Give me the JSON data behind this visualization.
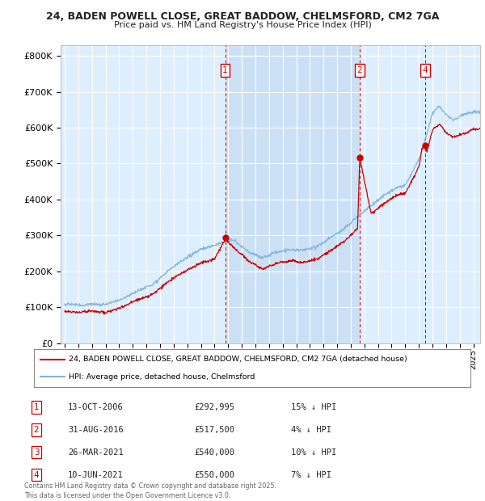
{
  "title_line1": "24, BADEN POWELL CLOSE, GREAT BADDOW, CHELMSFORD, CM2 7GA",
  "title_line2": "Price paid vs. HM Land Registry's House Price Index (HPI)",
  "ylim": [
    0,
    830000
  ],
  "yticks": [
    0,
    100000,
    200000,
    300000,
    400000,
    500000,
    600000,
    700000,
    800000
  ],
  "ytick_labels": [
    "£0",
    "£100K",
    "£200K",
    "£300K",
    "£400K",
    "£500K",
    "£600K",
    "£700K",
    "£800K"
  ],
  "xlim_start": 1994.7,
  "xlim_end": 2025.5,
  "plot_bg_color": "#ddeeff",
  "shade_bg_color": "#cce0f5",
  "grid_color": "#ffffff",
  "hpi_color": "#7fb3d9",
  "price_color": "#cc0000",
  "vline_color": "#cc0000",
  "transactions": [
    {
      "num": 1,
      "date_x": 2006.78,
      "price": 292995
    },
    {
      "num": 2,
      "date_x": 2016.66,
      "price": 517500
    },
    {
      "num": 3,
      "date_x": 2021.23,
      "price": 540000
    },
    {
      "num": 4,
      "date_x": 2021.44,
      "price": 550000
    }
  ],
  "shown_vlines": [
    1,
    2,
    4
  ],
  "shade_from_x": 2006.78,
  "shade_to_x": 2016.66,
  "legend_house_label": "24, BADEN POWELL CLOSE, GREAT BADDOW, CHELMSFORD, CM2 7GA (detached house)",
  "legend_hpi_label": "HPI: Average price, detached house, Chelmsford",
  "table_rows": [
    [
      "1",
      "13-OCT-2006",
      "£292,995",
      "15% ↓ HPI"
    ],
    [
      "2",
      "31-AUG-2016",
      "£517,500",
      "4% ↓ HPI"
    ],
    [
      "3",
      "26-MAR-2021",
      "£540,000",
      "10% ↓ HPI"
    ],
    [
      "4",
      "10-JUN-2021",
      "£550,000",
      "7% ↓ HPI"
    ]
  ],
  "footnote": "Contains HM Land Registry data © Crown copyright and database right 2025.\nThis data is licensed under the Open Government Licence v3.0."
}
